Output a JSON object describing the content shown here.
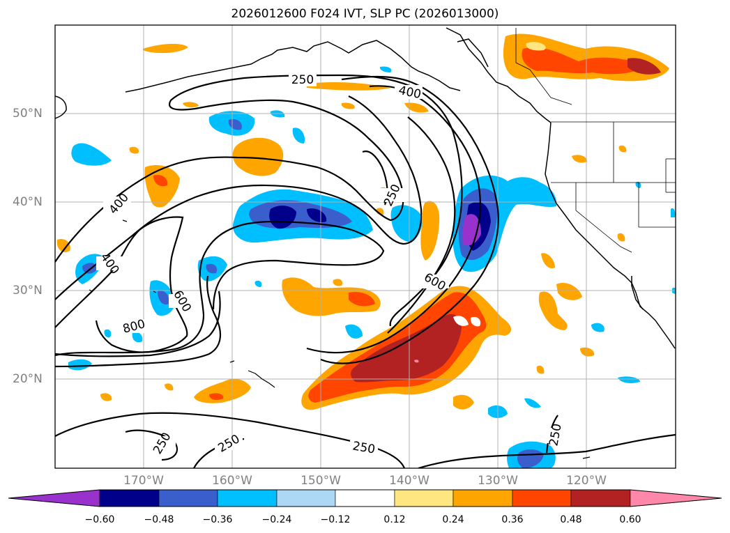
{
  "title": "2026012600 F024 IVT, SLP PC (2026013000)",
  "lon_labels": [
    "170°W",
    "160°W",
    "150°W",
    "140°W",
    "130°W",
    "120°W"
  ],
  "lat_labels": [
    "50°N",
    "40°N",
    "30°N",
    "20°N"
  ],
  "colorbar": {
    "ticks": [
      "−0.60",
      "−0.48",
      "−0.36",
      "−0.24",
      "−0.12",
      "0.12",
      "0.24",
      "0.36",
      "0.48",
      "0.60"
    ],
    "colors": [
      "#9932cc",
      "#00008b",
      "#3a5fcd",
      "#00bfff",
      "#add8f5",
      "#ffffff",
      "#ffe680",
      "#ffa500",
      "#ff4500",
      "#b22222",
      "#ff88aa"
    ]
  },
  "contour_labels": {
    "l250_a": "250",
    "l400_a": "400",
    "l400_b": "400",
    "l400_c": "400",
    "l250_b": "250",
    "l600_a": "600",
    "l600_b": "600",
    "l800": "800",
    "l250_c": "250",
    "l250_d": "250",
    "l250_e": "250",
    "l250_f": "250"
  },
  "colors": {
    "frame": "#000000",
    "grid": "#b0b0b0",
    "coast": "#000000"
  }
}
